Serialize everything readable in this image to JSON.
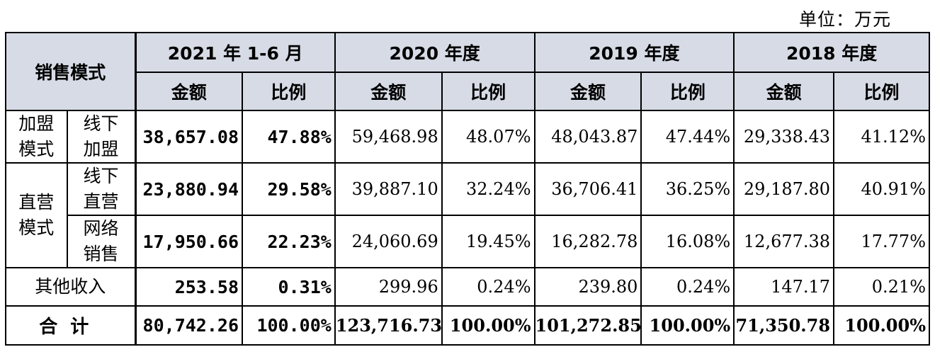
{
  "unit": "单位：万元",
  "header": {
    "mode": "销售模式",
    "periods": [
      "2021 年 1-6 月",
      "2020 年度",
      "2019 年度",
      "2018 年度"
    ],
    "amount": "金额",
    "ratio": "比例"
  },
  "rows": {
    "franchise": {
      "group": "加盟模式",
      "sub": "线下加盟",
      "cells": [
        "38,657.08",
        "47.88%",
        "59,468.98",
        "48.07%",
        "48,043.87",
        "47.44%",
        "29,338.43",
        "41.12%"
      ]
    },
    "direct_group": "直营模式",
    "direct_offline": {
      "sub": "线下直营",
      "cells": [
        "23,880.94",
        "29.58%",
        "39,887.10",
        "32.24%",
        "36,706.41",
        "36.25%",
        "29,187.80",
        "40.91%"
      ]
    },
    "direct_online": {
      "sub": "网络销售",
      "cells": [
        "17,950.66",
        "22.23%",
        "24,060.69",
        "19.45%",
        "16,282.78",
        "16.08%",
        "12,677.38",
        "17.77%"
      ]
    },
    "other": {
      "label": "其他收入",
      "cells": [
        "253.58",
        "0.31%",
        "299.96",
        "0.24%",
        "239.80",
        "0.24%",
        "147.17",
        "0.21%"
      ]
    },
    "total": {
      "label": "合计",
      "cells": [
        "80,742.26",
        "100.00%",
        "123,716.73",
        "100.00%",
        "101,272.85",
        "100.00%",
        "71,350.78",
        "100.00%"
      ]
    }
  }
}
